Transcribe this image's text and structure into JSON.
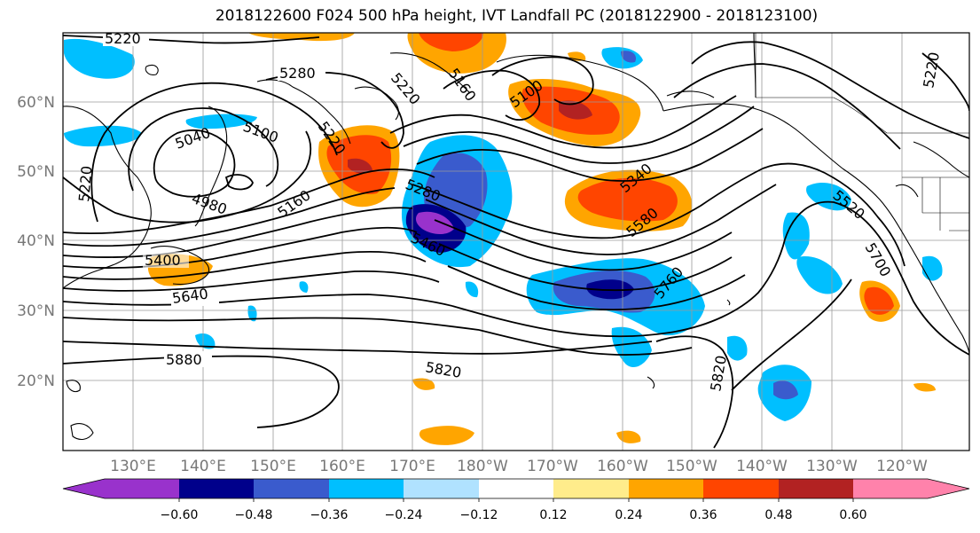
{
  "title": "2018122600 F024 500 hPa height, IVT Landfall PC (2018122900 - 2018123100)",
  "lat_labels": [
    "60°N",
    "50°N",
    "40°N",
    "30°N",
    "20°N"
  ],
  "lon_labels": [
    "130°E",
    "140°E",
    "150°E",
    "160°E",
    "170°E",
    "180°W",
    "170°W",
    "160°W",
    "150°W",
    "140°W",
    "130°W",
    "120°W"
  ],
  "contour_labels": [
    "5220",
    "5280",
    "5220",
    "5160",
    "5100",
    "5100",
    "5040",
    "5220",
    "4980",
    "5160",
    "5220",
    "5280",
    "5460",
    "5400",
    "5640",
    "5880",
    "5820",
    "5820",
    "5760",
    "5580",
    "5340",
    "5520",
    "5700",
    "5220"
  ],
  "colorbar": {
    "ticks": [
      "−0.60",
      "−0.48",
      "−0.36",
      "−0.24",
      "−0.12",
      "0.12",
      "0.24",
      "0.36",
      "0.48",
      "0.60"
    ],
    "colors": [
      "#9932cc",
      "#00008b",
      "#3a5bcd",
      "#00bfff",
      "#b0e2ff",
      "#ffffff",
      "#ffec8b",
      "#ffa500",
      "#ff4500",
      "#b22222",
      "#ff82ab"
    ]
  }
}
